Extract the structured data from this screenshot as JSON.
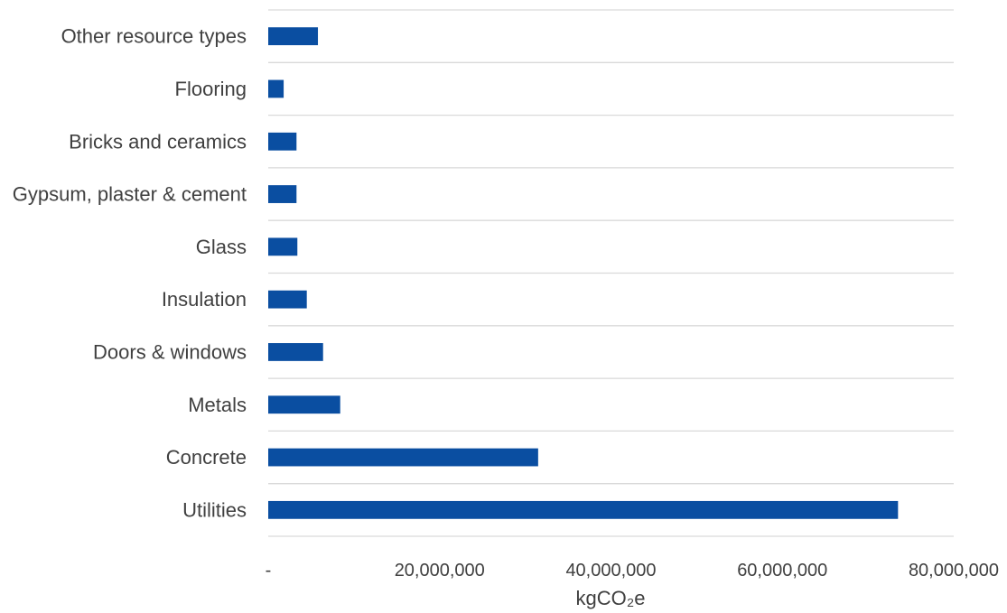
{
  "chart_data": {
    "type": "bar",
    "orientation": "horizontal",
    "categories": [
      "Utilities",
      "Concrete",
      "Metals",
      "Doors & windows",
      "Insulation",
      "Glass",
      "Gypsum, plaster & cement",
      "Bricks and ceramics",
      "Flooring",
      "Other resource types"
    ],
    "values": [
      73500000,
      31500000,
      8400000,
      6400000,
      4500000,
      3400000,
      3300000,
      3300000,
      1800000,
      5800000
    ],
    "xlabel": "kgCO₂e",
    "xlim": [
      0,
      80000000
    ],
    "xticks": [
      0,
      20000000,
      40000000,
      60000000,
      80000000
    ],
    "xtick_labels": [
      "-",
      "20,000,000",
      "40,000,000",
      "60,000,000",
      "80,000,000"
    ],
    "grid": true,
    "bar_color": "#0a4ea1"
  }
}
